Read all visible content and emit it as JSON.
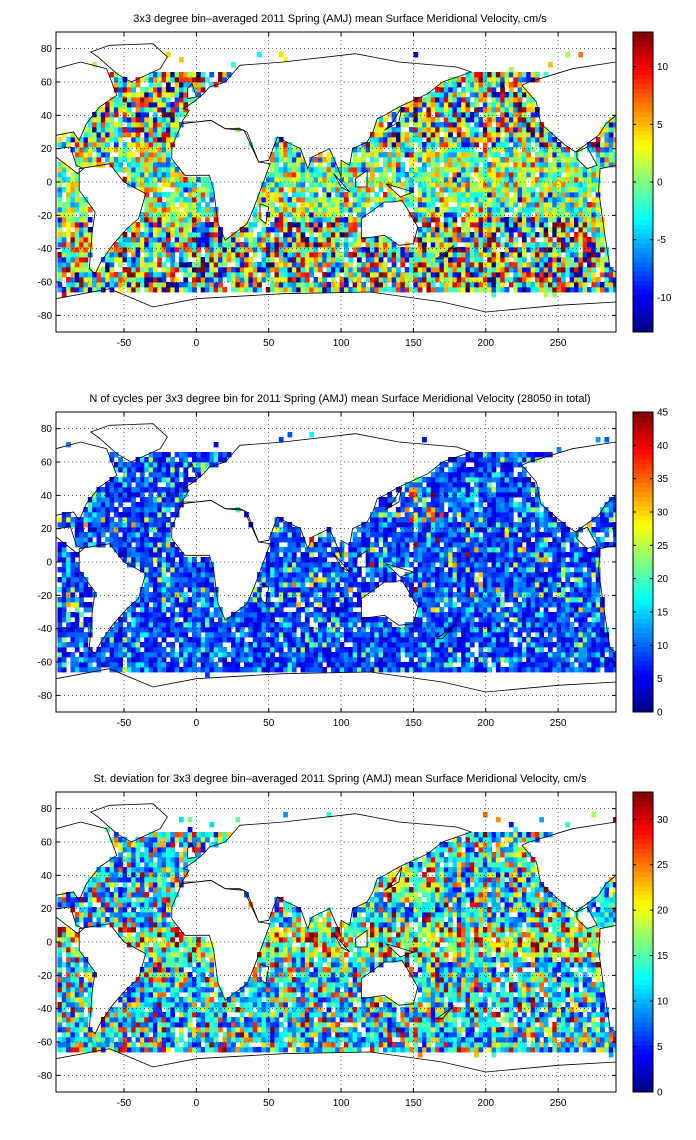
{
  "chart_data": [
    {
      "type": "heatmap",
      "title": "3x3 degree bin–averaged 2011 Spring (AMJ) mean Surface Meridional Velocity, cm/s",
      "xlabel": "",
      "ylabel": "",
      "xlim": [
        -97,
        290
      ],
      "ylim": [
        -90,
        90
      ],
      "xticks": [
        -50,
        0,
        50,
        100,
        150,
        200,
        250
      ],
      "yticks": [
        -80,
        -60,
        -40,
        -20,
        0,
        20,
        40,
        60,
        80
      ],
      "grid": "dotted",
      "colormap": "jet",
      "colorbar": {
        "range": [
          -13,
          13
        ],
        "ticks": [
          -10,
          -5,
          0,
          5,
          10
        ]
      },
      "bin_size_deg": 3,
      "seed": 11
    },
    {
      "type": "heatmap",
      "title": "N of cycles per 3x3 degree bin for 2011 Spring (AMJ) mean Surface Meridional Velocity (28050 in total)",
      "xlabel": "",
      "ylabel": "",
      "xlim": [
        -97,
        290
      ],
      "ylim": [
        -90,
        90
      ],
      "xticks": [
        -50,
        0,
        50,
        100,
        150,
        200,
        250
      ],
      "yticks": [
        -80,
        -60,
        -40,
        -20,
        0,
        20,
        40,
        60,
        80
      ],
      "grid": "dotted",
      "colormap": "jet",
      "colorbar": {
        "range": [
          0,
          45
        ],
        "ticks": [
          0,
          5,
          10,
          15,
          20,
          25,
          30,
          35,
          40,
          45
        ]
      },
      "bin_size_deg": 3,
      "seed": 23
    },
    {
      "type": "heatmap",
      "title": "St. deviation for 3x3 degree bin–averaged 2011 Spring (AMJ) mean Surface Meridional Velocity, cm/s",
      "xlabel": "",
      "ylabel": "",
      "xlim": [
        -97,
        290
      ],
      "ylim": [
        -90,
        90
      ],
      "xticks": [
        -50,
        0,
        50,
        100,
        150,
        200,
        250
      ],
      "yticks": [
        -80,
        -60,
        -40,
        -20,
        0,
        20,
        40,
        60,
        80
      ],
      "grid": "dotted",
      "colormap": "jet",
      "colorbar": {
        "range": [
          0,
          33
        ],
        "ticks": [
          0,
          5,
          10,
          15,
          20,
          25,
          30
        ]
      },
      "bin_size_deg": 3,
      "seed": 37
    }
  ]
}
